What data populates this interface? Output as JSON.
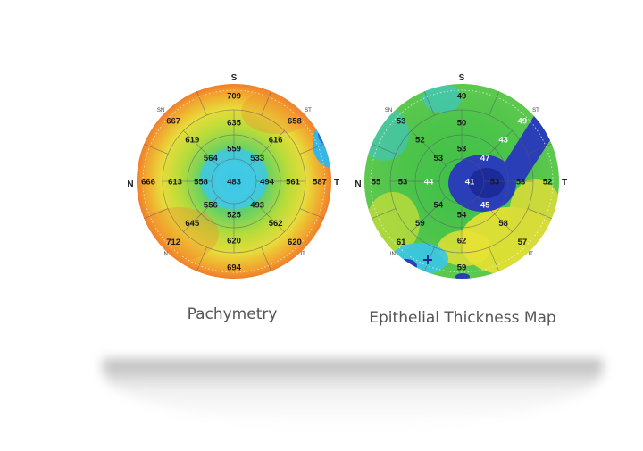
{
  "maps": [
    {
      "id": "pachymetry",
      "caption": "Pachymetry",
      "orientation": {
        "top": "S",
        "left": "N",
        "right": "T",
        "tl": "SN",
        "tr": "ST",
        "bl": "IN",
        "br": "IT"
      },
      "values": {
        "center": "483",
        "ring1": [
          "559",
          "533",
          "494",
          "493",
          "525",
          "556",
          "558",
          "564"
        ],
        "ring2": [
          "635",
          "616",
          "561",
          "562",
          "620",
          "645",
          "613",
          "619"
        ],
        "ring3": [
          "709",
          "658",
          "587",
          "620",
          "694",
          "712",
          "666",
          "667"
        ]
      }
    },
    {
      "id": "epithelial",
      "caption": "Epithelial Thickness Map",
      "orientation": {
        "top": "S",
        "left": "N",
        "right": "T",
        "tl": "SN",
        "tr": "ST",
        "bl": "IN",
        "br": "IT"
      },
      "values": {
        "center": "41",
        "ring1": [
          "53",
          "47",
          "53",
          "45",
          "54",
          "54",
          "44",
          "53"
        ],
        "ring2": [
          "50",
          "43",
          "53",
          "58",
          "62",
          "59",
          "53",
          "52"
        ],
        "ring3": [
          "49",
          "49",
          "52",
          "57",
          "59",
          "61",
          "55",
          "53"
        ]
      }
    }
  ],
  "colors": {
    "orange": "#f08a2c",
    "yellow": "#e4e23a",
    "green": "#3fbf4a",
    "cyan": "#38c6e8",
    "blue": "#2a3eb8",
    "dark_blue": "#1c2a9a"
  }
}
